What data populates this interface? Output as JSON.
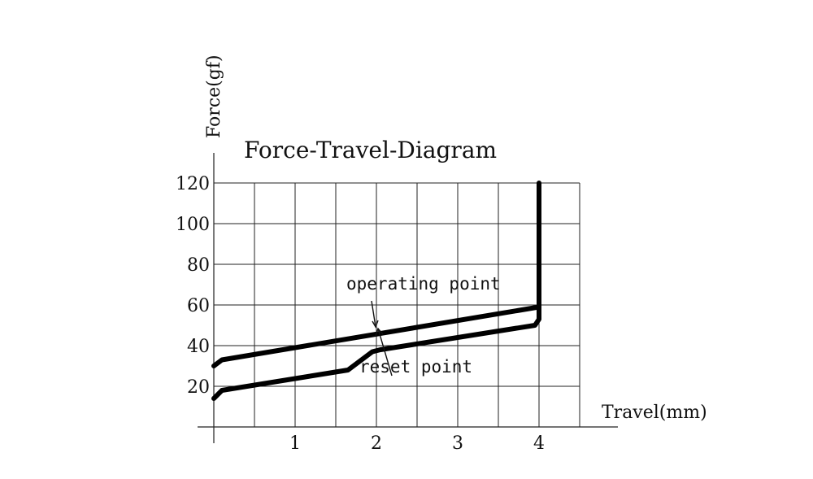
{
  "chart_data": {
    "type": "line",
    "title": "Force-Travel-Diagram",
    "xlabel": "Travel(mm)",
    "ylabel": "Force(gf)",
    "xlim": [
      0,
      4.5
    ],
    "ylim": [
      0,
      120
    ],
    "xticks": [
      1,
      2,
      3,
      4
    ],
    "yticks": [
      20,
      40,
      60,
      80,
      100,
      120
    ],
    "grid": true,
    "series": [
      {
        "name": "",
        "x": [
          0,
          0.1,
          4,
          4,
          4
        ],
        "y": [
          30,
          33,
          59,
          62,
          120
        ]
      },
      {
        "name": "",
        "x": [
          0,
          0.1,
          1.65,
          1.95,
          2.05,
          3.95,
          4,
          4
        ],
        "y": [
          14,
          18,
          28,
          37,
          38,
          50,
          53,
          60
        ]
      }
    ],
    "annotations": [
      {
        "text": "operating point",
        "x": 2.0,
        "y": 46
      },
      {
        "text": "reset point",
        "x": 2.05,
        "y": 38
      }
    ]
  }
}
